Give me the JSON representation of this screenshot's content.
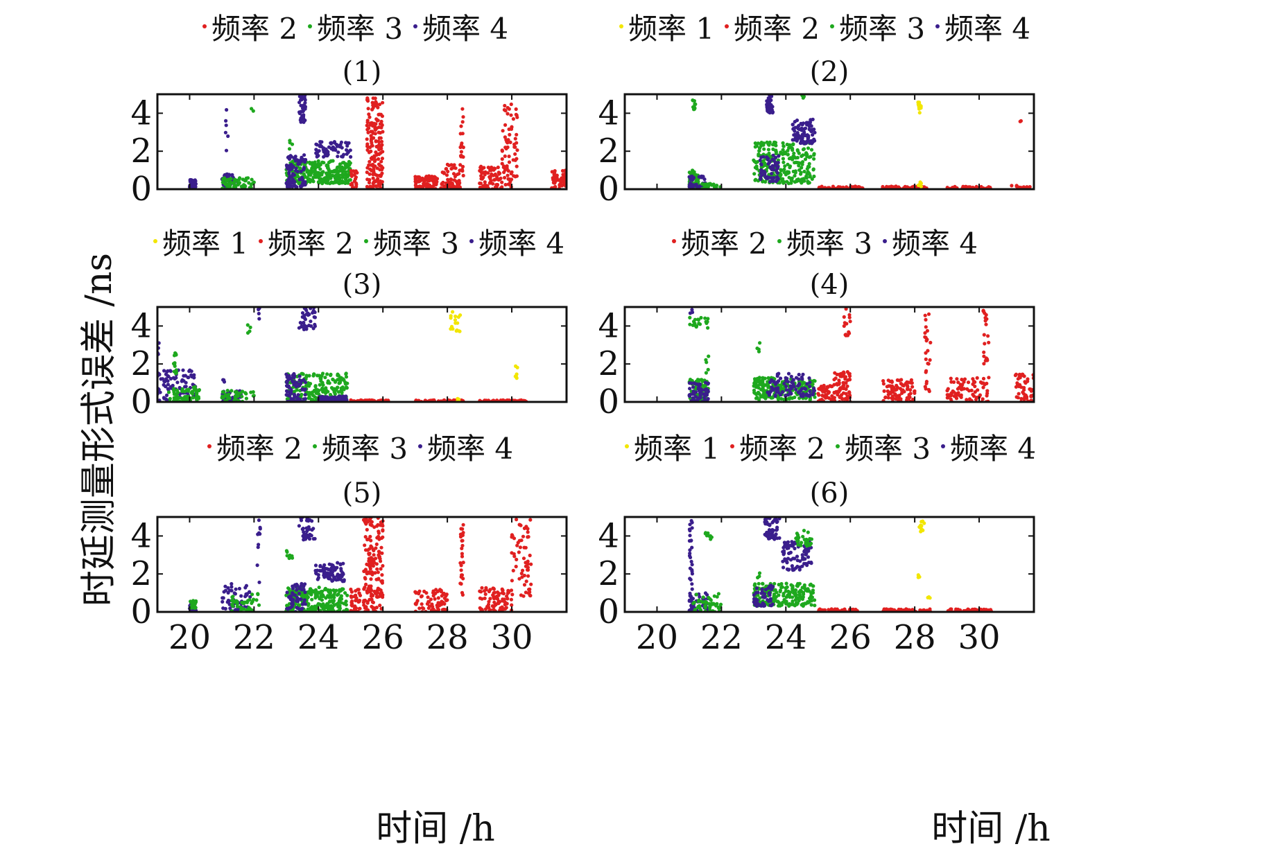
{
  "figure": {
    "ylabel": "时延测量形式误差 /ns",
    "xlabel": "时间 /h"
  },
  "series_styles": {
    "freq1": {
      "name": "频率 1",
      "color": "#f2e600"
    },
    "freq2": {
      "name": "频率 2",
      "color": "#e02020"
    },
    "freq3": {
      "name": "频率 3",
      "color": "#1ea81e"
    },
    "freq4": {
      "name": "频率 4",
      "color": "#3a1e8c"
    }
  },
  "chart_data": [
    {
      "type": "scatter",
      "title": "(1)",
      "legend": [
        "频率 2",
        "频率 3",
        "频率 4"
      ],
      "xlim": [
        19,
        31.7
      ],
      "ylim": [
        0,
        5
      ],
      "xticks": [
        "20",
        "22",
        "24",
        "26",
        "28",
        "30"
      ],
      "yticks": [
        "0",
        "2",
        "4"
      ],
      "clusters": [
        {
          "s": "freq4",
          "x0": 20,
          "x1": 20.2,
          "y0": 0.1,
          "y1": 0.5,
          "n": 40
        },
        {
          "s": "freq4",
          "x0": 21,
          "x1": 21.4,
          "y0": 0,
          "y1": 0.8,
          "n": 45
        },
        {
          "s": "freq3",
          "x0": 21,
          "x1": 22,
          "y0": 0,
          "y1": 0.6,
          "n": 70
        },
        {
          "s": "freq4",
          "x0": 21.1,
          "x1": 21.2,
          "y0": 2,
          "y1": 4.3,
          "n": 6
        },
        {
          "s": "freq3",
          "x0": 21.9,
          "x1": 22,
          "y0": 4.1,
          "y1": 4.3,
          "n": 2
        },
        {
          "s": "freq3",
          "x0": 23,
          "x1": 25,
          "y0": 0.3,
          "y1": 1.5,
          "n": 260
        },
        {
          "s": "freq4",
          "x0": 23,
          "x1": 23.6,
          "y0": 0.1,
          "y1": 1.8,
          "n": 80
        },
        {
          "s": "freq4",
          "x0": 23.4,
          "x1": 23.6,
          "y0": 3.5,
          "y1": 5,
          "n": 40
        },
        {
          "s": "freq4",
          "x0": 23.9,
          "x1": 25,
          "y0": 1.7,
          "y1": 2.5,
          "n": 70
        },
        {
          "s": "freq3",
          "x0": 23.1,
          "x1": 23.2,
          "y0": 2,
          "y1": 2.6,
          "n": 4
        },
        {
          "s": "freq2",
          "x0": 25,
          "x1": 25.2,
          "y0": 0,
          "y1": 1,
          "n": 20
        },
        {
          "s": "freq2",
          "x0": 25.5,
          "x1": 26,
          "y0": 0,
          "y1": 4.8,
          "n": 170
        },
        {
          "s": "freq2",
          "x0": 27,
          "x1": 27.7,
          "y0": 0,
          "y1": 0.7,
          "n": 80
        },
        {
          "s": "freq2",
          "x0": 27.8,
          "x1": 28.4,
          "y0": 0,
          "y1": 1.3,
          "n": 60
        },
        {
          "s": "freq2",
          "x0": 28.4,
          "x1": 28.5,
          "y0": 0.5,
          "y1": 4.7,
          "n": 20
        },
        {
          "s": "freq2",
          "x0": 29,
          "x1": 30,
          "y0": 0,
          "y1": 1.2,
          "n": 90
        },
        {
          "s": "freq2",
          "x0": 29.7,
          "x1": 30.2,
          "y0": 0.5,
          "y1": 4.5,
          "n": 60
        },
        {
          "s": "freq2",
          "x0": 31.2,
          "x1": 31.7,
          "y0": 0,
          "y1": 1,
          "n": 50
        }
      ]
    },
    {
      "type": "scatter",
      "title": "(2)",
      "legend": [
        "频率 1",
        "频率 2",
        "频率 3",
        "频率 4"
      ],
      "xlim": [
        19,
        31.7
      ],
      "ylim": [
        0,
        5
      ],
      "xticks": [
        "20",
        "22",
        "24",
        "26",
        "28",
        "30"
      ],
      "yticks": [
        "0",
        "2",
        "4"
      ],
      "clusters": [
        {
          "s": "freq3",
          "x0": 21,
          "x1": 21.3,
          "y0": 0,
          "y1": 1,
          "n": 50
        },
        {
          "s": "freq4",
          "x0": 21,
          "x1": 21.5,
          "y0": 0,
          "y1": 0.7,
          "n": 50
        },
        {
          "s": "freq3",
          "x0": 21.1,
          "x1": 21.2,
          "y0": 4.2,
          "y1": 4.8,
          "n": 10
        },
        {
          "s": "freq3",
          "x0": 21.4,
          "x1": 22,
          "y0": 0,
          "y1": 0.3,
          "n": 30
        },
        {
          "s": "freq3",
          "x0": 23,
          "x1": 24.9,
          "y0": 0.3,
          "y1": 2.5,
          "n": 250
        },
        {
          "s": "freq4",
          "x0": 23.2,
          "x1": 23.8,
          "y0": 0.4,
          "y1": 1.8,
          "n": 60
        },
        {
          "s": "freq4",
          "x0": 23.4,
          "x1": 23.6,
          "y0": 4,
          "y1": 5,
          "n": 40
        },
        {
          "s": "freq4",
          "x0": 24.2,
          "x1": 24.9,
          "y0": 2.4,
          "y1": 3.7,
          "n": 90
        },
        {
          "s": "freq3",
          "x0": 24.5,
          "x1": 24.6,
          "y0": 4.8,
          "y1": 5,
          "n": 3
        },
        {
          "s": "freq2",
          "x0": 25,
          "x1": 26.4,
          "y0": 0,
          "y1": 0.15,
          "n": 70
        },
        {
          "s": "freq2",
          "x0": 27,
          "x1": 28.4,
          "y0": 0,
          "y1": 0.15,
          "n": 70
        },
        {
          "s": "freq2",
          "x0": 29,
          "x1": 30.4,
          "y0": 0,
          "y1": 0.15,
          "n": 50
        },
        {
          "s": "freq2",
          "x0": 31,
          "x1": 31.7,
          "y0": 0,
          "y1": 0.2,
          "n": 20
        },
        {
          "s": "freq2",
          "x0": 31.2,
          "x1": 31.3,
          "y0": 3.4,
          "y1": 3.6,
          "n": 2
        },
        {
          "s": "freq1",
          "x0": 28.1,
          "x1": 28.2,
          "y0": 4,
          "y1": 4.6,
          "n": 14
        },
        {
          "s": "freq1",
          "x0": 28.1,
          "x1": 28.2,
          "y0": 0.1,
          "y1": 0.5,
          "n": 6
        }
      ]
    },
    {
      "type": "scatter",
      "title": "(3)",
      "legend": [
        "频率 1",
        "频率 2",
        "频率 3",
        "频率 4"
      ],
      "xlim": [
        19,
        31.7
      ],
      "ylim": [
        0,
        5
      ],
      "xticks": [
        "20",
        "22",
        "24",
        "26",
        "28",
        "30"
      ],
      "yticks": [
        "0",
        "2",
        "4"
      ],
      "clusters": [
        {
          "s": "freq4",
          "x0": 19,
          "x1": 20.2,
          "y0": 0,
          "y1": 1.7,
          "n": 90
        },
        {
          "s": "freq3",
          "x0": 19.3,
          "x1": 20.3,
          "y0": 0,
          "y1": 0.8,
          "n": 60
        },
        {
          "s": "freq3",
          "x0": 19.5,
          "x1": 19.6,
          "y0": 1.5,
          "y1": 2.6,
          "n": 12
        },
        {
          "s": "freq4",
          "x0": 19,
          "x1": 19.05,
          "y0": 2.5,
          "y1": 3.3,
          "n": 4
        },
        {
          "s": "freq4",
          "x0": 21,
          "x1": 21.6,
          "y0": 0,
          "y1": 0.6,
          "n": 40
        },
        {
          "s": "freq3",
          "x0": 21,
          "x1": 22,
          "y0": 0,
          "y1": 0.6,
          "n": 40
        },
        {
          "s": "freq4",
          "x0": 21,
          "x1": 21.1,
          "y0": 1,
          "y1": 1.2,
          "n": 3
        },
        {
          "s": "freq3",
          "x0": 21.8,
          "x1": 21.9,
          "y0": 3.4,
          "y1": 4.2,
          "n": 4
        },
        {
          "s": "freq4",
          "x0": 22.1,
          "x1": 22.2,
          "y0": 4,
          "y1": 5,
          "n": 4
        },
        {
          "s": "freq3",
          "x0": 23,
          "x1": 24.9,
          "y0": 0,
          "y1": 1.5,
          "n": 220
        },
        {
          "s": "freq4",
          "x0": 23,
          "x1": 23.6,
          "y0": 0,
          "y1": 1.5,
          "n": 70
        },
        {
          "s": "freq4",
          "x0": 23.4,
          "x1": 23.9,
          "y0": 3.8,
          "y1": 5,
          "n": 40
        },
        {
          "s": "freq4",
          "x0": 24,
          "x1": 24.9,
          "y0": 0,
          "y1": 0.3,
          "n": 70
        },
        {
          "s": "freq2",
          "x0": 25,
          "x1": 26.2,
          "y0": 0,
          "y1": 0.1,
          "n": 60
        },
        {
          "s": "freq2",
          "x0": 27,
          "x1": 28.5,
          "y0": 0,
          "y1": 0.1,
          "n": 60
        },
        {
          "s": "freq2",
          "x0": 29,
          "x1": 30.5,
          "y0": 0,
          "y1": 0.1,
          "n": 60
        },
        {
          "s": "freq1",
          "x0": 28.1,
          "x1": 28.4,
          "y0": 3.7,
          "y1": 4.8,
          "n": 16
        },
        {
          "s": "freq1",
          "x0": 28.3,
          "x1": 28.4,
          "y0": 0,
          "y1": 0.2,
          "n": 5
        },
        {
          "s": "freq1",
          "x0": 30.1,
          "x1": 30.2,
          "y0": 1,
          "y1": 1.9,
          "n": 7
        }
      ]
    },
    {
      "type": "scatter",
      "title": "(4)",
      "legend": [
        "频率 2",
        "频率 3",
        "频率 4"
      ],
      "xlim": [
        19,
        31.7
      ],
      "ylim": [
        0,
        5
      ],
      "xticks": [
        "20",
        "22",
        "24",
        "26",
        "28",
        "30"
      ],
      "yticks": [
        "0",
        "2",
        "4"
      ],
      "clusters": [
        {
          "s": "freq3",
          "x0": 21,
          "x1": 21.6,
          "y0": 0,
          "y1": 1.2,
          "n": 70
        },
        {
          "s": "freq4",
          "x0": 21,
          "x1": 21.6,
          "y0": 0,
          "y1": 1.1,
          "n": 60
        },
        {
          "s": "freq3",
          "x0": 21,
          "x1": 21.6,
          "y0": 3.9,
          "y1": 4.5,
          "n": 20
        },
        {
          "s": "freq4",
          "x0": 21,
          "x1": 21.1,
          "y0": 4.5,
          "y1": 4.9,
          "n": 3
        },
        {
          "s": "freq3",
          "x0": 21.5,
          "x1": 21.6,
          "y0": 1.5,
          "y1": 2.6,
          "n": 5
        },
        {
          "s": "freq3",
          "x0": 23,
          "x1": 24.9,
          "y0": 0.1,
          "y1": 1.3,
          "n": 220
        },
        {
          "s": "freq4",
          "x0": 23.4,
          "x1": 24.9,
          "y0": 0.3,
          "y1": 1.5,
          "n": 90
        },
        {
          "s": "freq3",
          "x0": 23.1,
          "x1": 23.2,
          "y0": 2.5,
          "y1": 3.3,
          "n": 4
        },
        {
          "s": "freq2",
          "x0": 25,
          "x1": 25.5,
          "y0": 0,
          "y1": 0.9,
          "n": 50
        },
        {
          "s": "freq2",
          "x0": 25.5,
          "x1": 26,
          "y0": 0,
          "y1": 1.6,
          "n": 70
        },
        {
          "s": "freq2",
          "x0": 25.8,
          "x1": 26,
          "y0": 3.5,
          "y1": 5,
          "n": 15
        },
        {
          "s": "freq2",
          "x0": 27,
          "x1": 28,
          "y0": 0,
          "y1": 1.2,
          "n": 80
        },
        {
          "s": "freq2",
          "x0": 28.3,
          "x1": 28.5,
          "y0": 0.5,
          "y1": 5,
          "n": 25
        },
        {
          "s": "freq2",
          "x0": 29,
          "x1": 30.3,
          "y0": 0,
          "y1": 1.3,
          "n": 80
        },
        {
          "s": "freq2",
          "x0": 30.1,
          "x1": 30.3,
          "y0": 2,
          "y1": 4.9,
          "n": 20
        },
        {
          "s": "freq2",
          "x0": 31.1,
          "x1": 31.7,
          "y0": 0,
          "y1": 1.5,
          "n": 50
        }
      ]
    },
    {
      "type": "scatter",
      "title": "(5)",
      "legend": [
        "频率 2",
        "频率 3",
        "频率 4"
      ],
      "xlim": [
        19,
        31.7
      ],
      "ylim": [
        0,
        5
      ],
      "xticks": [
        "20",
        "22",
        "24",
        "26",
        "28",
        "30"
      ],
      "yticks": [
        "0",
        "2",
        "4"
      ],
      "clusters": [
        {
          "s": "freq4",
          "x0": 20,
          "x1": 20.2,
          "y0": 0,
          "y1": 0.5,
          "n": 30
        },
        {
          "s": "freq3",
          "x0": 20,
          "x1": 20.2,
          "y0": 0.2,
          "y1": 0.6,
          "n": 20
        },
        {
          "s": "freq4",
          "x0": 21,
          "x1": 21.9,
          "y0": 0,
          "y1": 1.5,
          "n": 60
        },
        {
          "s": "freq3",
          "x0": 21.3,
          "x1": 22.2,
          "y0": 0,
          "y1": 1,
          "n": 40
        },
        {
          "s": "freq4",
          "x0": 22.1,
          "x1": 22.2,
          "y0": 1.5,
          "y1": 5,
          "n": 10
        },
        {
          "s": "freq3",
          "x0": 23,
          "x1": 24.9,
          "y0": 0,
          "y1": 1.3,
          "n": 230
        },
        {
          "s": "freq4",
          "x0": 23,
          "x1": 23.6,
          "y0": 0,
          "y1": 1.5,
          "n": 60
        },
        {
          "s": "freq4",
          "x0": 23.4,
          "x1": 23.9,
          "y0": 3.8,
          "y1": 5,
          "n": 40
        },
        {
          "s": "freq4",
          "x0": 23.9,
          "x1": 24.8,
          "y0": 1.6,
          "y1": 2.6,
          "n": 80
        },
        {
          "s": "freq3",
          "x0": 23,
          "x1": 23.2,
          "y0": 2.8,
          "y1": 3.5,
          "n": 8
        },
        {
          "s": "freq2",
          "x0": 25,
          "x1": 25.3,
          "y0": 0,
          "y1": 1.2,
          "n": 40
        },
        {
          "s": "freq2",
          "x0": 25.4,
          "x1": 26,
          "y0": 0,
          "y1": 5,
          "n": 170
        },
        {
          "s": "freq2",
          "x0": 27,
          "x1": 28,
          "y0": 0,
          "y1": 1.2,
          "n": 80
        },
        {
          "s": "freq2",
          "x0": 28.4,
          "x1": 28.5,
          "y0": 0.8,
          "y1": 5,
          "n": 25
        },
        {
          "s": "freq2",
          "x0": 29,
          "x1": 30,
          "y0": 0,
          "y1": 1.3,
          "n": 90
        },
        {
          "s": "freq2",
          "x0": 30,
          "x1": 30.6,
          "y0": 0.8,
          "y1": 4.9,
          "n": 60
        }
      ]
    },
    {
      "type": "scatter",
      "title": "(6)",
      "legend": [
        "频率 1",
        "频率 2",
        "频率 3",
        "频率 4"
      ],
      "xlim": [
        19,
        31.7
      ],
      "ylim": [
        0,
        5
      ],
      "xticks": [
        "20",
        "22",
        "24",
        "26",
        "28",
        "30"
      ],
      "yticks": [
        "0",
        "2",
        "4"
      ],
      "clusters": [
        {
          "s": "freq4",
          "x0": 21,
          "x1": 21.1,
          "y0": 0,
          "y1": 4.8,
          "n": 40
        },
        {
          "s": "freq4",
          "x0": 21,
          "x1": 21.6,
          "y0": 0,
          "y1": 1,
          "n": 40
        },
        {
          "s": "freq3",
          "x0": 21.1,
          "x1": 22,
          "y0": 0,
          "y1": 1,
          "n": 50
        },
        {
          "s": "freq3",
          "x0": 21.5,
          "x1": 21.7,
          "y0": 3.8,
          "y1": 4.2,
          "n": 8
        },
        {
          "s": "freq3",
          "x0": 23,
          "x1": 24.9,
          "y0": 0.3,
          "y1": 1.5,
          "n": 200
        },
        {
          "s": "freq4",
          "x0": 23,
          "x1": 23.6,
          "y0": 0.3,
          "y1": 1.4,
          "n": 50
        },
        {
          "s": "freq4",
          "x0": 23.3,
          "x1": 23.8,
          "y0": 3.8,
          "y1": 5,
          "n": 45
        },
        {
          "s": "freq4",
          "x0": 23.9,
          "x1": 24.8,
          "y0": 2.2,
          "y1": 3.7,
          "n": 90
        },
        {
          "s": "freq3",
          "x0": 24.3,
          "x1": 24.8,
          "y0": 3.4,
          "y1": 4.3,
          "n": 25
        },
        {
          "s": "freq3",
          "x0": 23.1,
          "x1": 23.2,
          "y0": 1.8,
          "y1": 2.1,
          "n": 3
        },
        {
          "s": "freq2",
          "x0": 25,
          "x1": 26.3,
          "y0": 0,
          "y1": 0.15,
          "n": 60
        },
        {
          "s": "freq2",
          "x0": 27,
          "x1": 28.5,
          "y0": 0,
          "y1": 0.15,
          "n": 60
        },
        {
          "s": "freq2",
          "x0": 29,
          "x1": 30.4,
          "y0": 0,
          "y1": 0.15,
          "n": 50
        },
        {
          "s": "freq1",
          "x0": 28.1,
          "x1": 28.3,
          "y0": 4.2,
          "y1": 4.8,
          "n": 10
        },
        {
          "s": "freq1",
          "x0": 28.1,
          "x1": 28.2,
          "y0": 1.7,
          "y1": 2,
          "n": 3
        },
        {
          "s": "freq1",
          "x0": 28.4,
          "x1": 28.5,
          "y0": 0.5,
          "y1": 0.8,
          "n": 3
        }
      ]
    }
  ]
}
